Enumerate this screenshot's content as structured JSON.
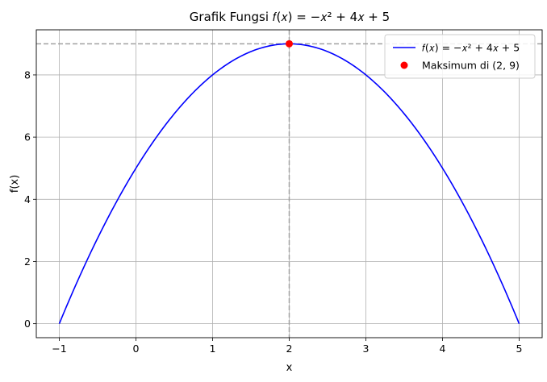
{
  "chart_data": {
    "type": "line",
    "title": "Grafik Fungsi 𝑓(𝑥) = −𝑥² + 4𝑥 + 5",
    "xlabel": "x",
    "ylabel": "f(x)",
    "xlim": [
      -1.3,
      5.3
    ],
    "ylim": [
      -0.45,
      9.45
    ],
    "xticks": [
      -1,
      0,
      1,
      2,
      3,
      4,
      5
    ],
    "yticks": [
      0,
      2,
      4,
      6,
      8
    ],
    "grid": true,
    "legend_position": "top-right",
    "series": [
      {
        "name": "𝑓(𝑥) = −𝑥² + 4𝑥 + 5",
        "kind": "line",
        "color": "#0000ff",
        "function": {
          "a": -1,
          "b": 4,
          "c": 5
        },
        "x_range": [
          -1,
          5
        ]
      },
      {
        "name": "Maksimum di (2, 9)",
        "kind": "scatter",
        "color": "#ff0000",
        "points": [
          [
            2,
            9
          ]
        ]
      }
    ],
    "reference_lines": [
      {
        "orientation": "horizontal",
        "value": 9,
        "style": "dashed",
        "color": "#a0a0a0"
      },
      {
        "orientation": "vertical",
        "value": 2,
        "style": "dashed",
        "color": "#a0a0a0"
      }
    ]
  }
}
